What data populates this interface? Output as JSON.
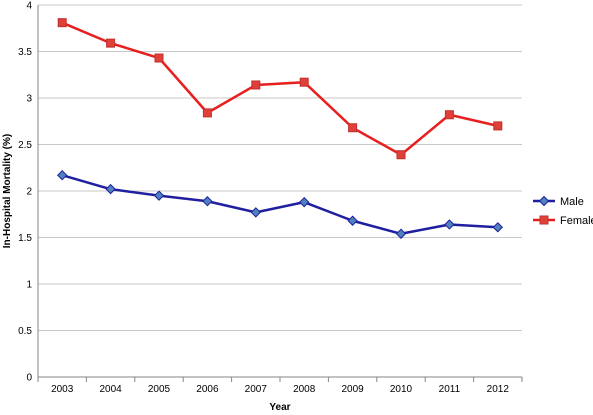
{
  "chart_data": {
    "type": "line",
    "xlabel": "Year",
    "ylabel": "In-Hospital Mortality (%)",
    "categories": [
      "2003",
      "2004",
      "2005",
      "2006",
      "2007",
      "2008",
      "2009",
      "2010",
      "2011",
      "2012"
    ],
    "ylim": [
      0,
      4
    ],
    "yticks": [
      "0",
      "0.5",
      "1",
      "1.5",
      "2",
      "2.5",
      "3",
      "3.5",
      "4"
    ],
    "grid": "horizontal",
    "legend": "right",
    "series": [
      {
        "name": "Male",
        "color": "#1f1fa0",
        "marker": "diamond",
        "values": [
          2.17,
          2.02,
          1.95,
          1.89,
          1.77,
          1.88,
          1.68,
          1.54,
          1.64,
          1.61
        ]
      },
      {
        "name": "Female",
        "color": "#e81f1f",
        "marker": "square",
        "values": [
          3.81,
          3.59,
          3.43,
          2.84,
          3.14,
          3.17,
          2.68,
          2.39,
          2.82,
          2.7
        ]
      }
    ]
  }
}
